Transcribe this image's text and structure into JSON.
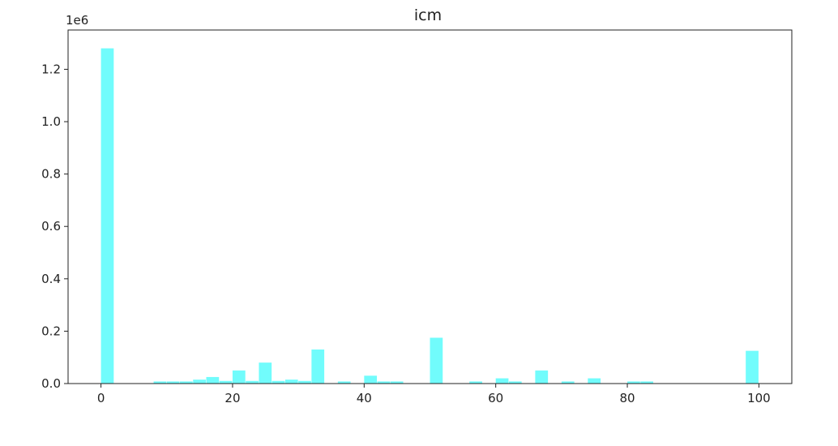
{
  "chart_data": {
    "type": "bar",
    "title": "icm",
    "y_offset_label": "1e6",
    "xlabel": "",
    "ylabel": "",
    "xlim": [
      -5.0,
      105.0
    ],
    "ylim": [
      0,
      1.35
    ],
    "bar_width": 2.0,
    "bar_color": "#71fcfc",
    "x_ticks": [
      0,
      20,
      40,
      60,
      80,
      100
    ],
    "x_tick_labels": [
      "0",
      "20",
      "40",
      "60",
      "80",
      "100"
    ],
    "y_ticks": [
      0.0,
      0.2,
      0.4,
      0.6,
      0.8,
      1.0,
      1.2
    ],
    "y_tick_labels": [
      "0.0",
      "0.2",
      "0.4",
      "0.6",
      "0.8",
      "1.0",
      "1.2"
    ],
    "x": [
      1,
      9,
      11,
      13,
      15,
      17,
      19,
      21,
      23,
      25,
      27,
      29,
      31,
      33,
      37,
      41,
      43,
      45,
      51,
      57,
      61,
      63,
      67,
      71,
      75,
      81,
      83,
      99
    ],
    "values": [
      1.28,
      0.008,
      0.008,
      0.008,
      0.015,
      0.025,
      0.01,
      0.05,
      0.01,
      0.08,
      0.01,
      0.015,
      0.01,
      0.13,
      0.008,
      0.03,
      0.008,
      0.008,
      0.175,
      0.008,
      0.02,
      0.008,
      0.05,
      0.008,
      0.02,
      0.008,
      0.008,
      0.125
    ]
  }
}
